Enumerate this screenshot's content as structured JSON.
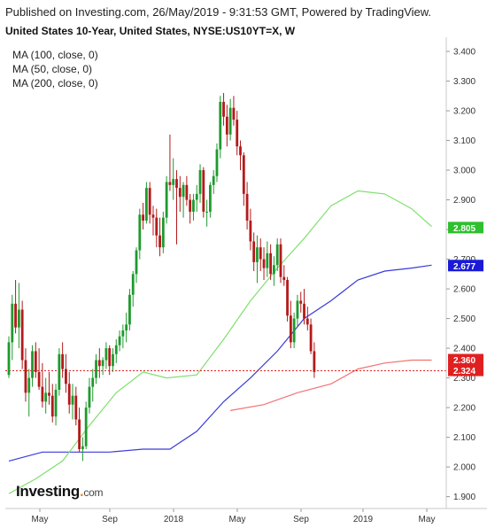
{
  "header": {
    "published": "Published on Investing.com, 26/May/2019 - 9:31:53 GMT, Powered by TradingView.",
    "title": "United States 10-Year, United States, NYSE:US10YT=X, W"
  },
  "indicators": [
    {
      "label": "MA (100, close, 0)",
      "color": "#3a3adb"
    },
    {
      "label": "MA (50, close, 0)",
      "color": "#7ee06c"
    },
    {
      "label": "MA (200, close, 0)",
      "color": "#f07373"
    }
  ],
  "logo": {
    "text": "Investing",
    "suffix": "com"
  },
  "chart_data": {
    "type": "candlestick",
    "interval": "weekly",
    "y_ticks": [
      "3.400",
      "3.300",
      "3.200",
      "3.100",
      "3.000",
      "2.900",
      "2.800",
      "2.700",
      "2.600",
      "2.500",
      "2.400",
      "2.300",
      "2.200",
      "2.100",
      "2.000",
      "1.900"
    ],
    "ylim": [
      1.86,
      3.43
    ],
    "x_ticks": [
      "May",
      "Sep",
      "2018",
      "May",
      "Sep",
      "2019",
      "May"
    ],
    "tags": [
      {
        "text": "2.805",
        "value": 2.805,
        "color": "#2fbf2f"
      },
      {
        "text": "2.677",
        "value": 2.677,
        "color": "#1a1ad8"
      },
      {
        "text": "2.360",
        "value": 2.36,
        "color": "#e02020"
      },
      {
        "text": "2.324",
        "value": 2.324,
        "color": "#e02020"
      }
    ],
    "last_close": 2.324,
    "candles": [
      [
        2.31,
        2.44,
        2.3,
        2.42
      ],
      [
        2.42,
        2.58,
        2.36,
        2.55
      ],
      [
        2.55,
        2.63,
        2.45,
        2.47
      ],
      [
        2.47,
        2.62,
        2.4,
        2.53
      ],
      [
        2.53,
        2.56,
        2.33,
        2.36
      ],
      [
        2.36,
        2.4,
        2.22,
        2.25
      ],
      [
        2.25,
        2.33,
        2.17,
        2.3
      ],
      [
        2.3,
        2.41,
        2.27,
        2.39
      ],
      [
        2.39,
        2.42,
        2.3,
        2.32
      ],
      [
        2.32,
        2.4,
        2.26,
        2.27
      ],
      [
        2.27,
        2.35,
        2.2,
        2.22
      ],
      [
        2.22,
        2.3,
        2.18,
        2.25
      ],
      [
        2.25,
        2.32,
        2.21,
        2.24
      ],
      [
        2.24,
        2.28,
        2.15,
        2.17
      ],
      [
        2.17,
        2.28,
        2.14,
        2.26
      ],
      [
        2.26,
        2.4,
        2.24,
        2.38
      ],
      [
        2.38,
        2.42,
        2.3,
        2.33
      ],
      [
        2.33,
        2.38,
        2.25,
        2.28
      ],
      [
        2.28,
        2.32,
        2.18,
        2.21
      ],
      [
        2.21,
        2.28,
        2.16,
        2.24
      ],
      [
        2.24,
        2.27,
        2.14,
        2.16
      ],
      [
        2.16,
        2.2,
        2.05,
        2.06
      ],
      [
        2.06,
        2.1,
        2.02,
        2.07
      ],
      [
        2.07,
        2.22,
        2.06,
        2.2
      ],
      [
        2.2,
        2.3,
        2.18,
        2.27
      ],
      [
        2.27,
        2.33,
        2.22,
        2.3
      ],
      [
        2.3,
        2.38,
        2.28,
        2.36
      ],
      [
        2.36,
        2.4,
        2.3,
        2.34
      ],
      [
        2.34,
        2.37,
        2.31,
        2.36
      ],
      [
        2.36,
        2.42,
        2.33,
        2.4
      ],
      [
        2.4,
        2.41,
        2.31,
        2.34
      ],
      [
        2.34,
        2.4,
        2.32,
        2.38
      ],
      [
        2.38,
        2.43,
        2.35,
        2.41
      ],
      [
        2.41,
        2.46,
        2.39,
        2.44
      ],
      [
        2.44,
        2.48,
        2.4,
        2.46
      ],
      [
        2.46,
        2.52,
        2.42,
        2.48
      ],
      [
        2.48,
        2.6,
        2.46,
        2.58
      ],
      [
        2.58,
        2.66,
        2.54,
        2.65
      ],
      [
        2.65,
        2.74,
        2.62,
        2.73
      ],
      [
        2.73,
        2.87,
        2.7,
        2.85
      ],
      [
        2.85,
        2.89,
        2.8,
        2.83
      ],
      [
        2.83,
        2.96,
        2.82,
        2.94
      ],
      [
        2.94,
        2.96,
        2.82,
        2.85
      ],
      [
        2.85,
        2.88,
        2.78,
        2.84
      ],
      [
        2.84,
        2.87,
        2.74,
        2.78
      ],
      [
        2.78,
        2.84,
        2.71,
        2.74
      ],
      [
        2.74,
        2.86,
        2.72,
        2.84
      ],
      [
        2.84,
        2.98,
        2.82,
        2.96
      ],
      [
        2.96,
        3.12,
        2.93,
        2.95
      ],
      [
        2.95,
        3.04,
        2.9,
        2.97
      ],
      [
        2.97,
        3.0,
        2.75,
        2.94
      ],
      [
        2.94,
        2.98,
        2.86,
        2.91
      ],
      [
        2.91,
        2.96,
        2.84,
        2.95
      ],
      [
        2.95,
        2.98,
        2.88,
        2.9
      ],
      [
        2.9,
        2.92,
        2.82,
        2.86
      ],
      [
        2.86,
        2.92,
        2.83,
        2.9
      ],
      [
        2.9,
        2.95,
        2.86,
        2.92
      ],
      [
        2.92,
        3.02,
        2.89,
        3.0
      ],
      [
        3.0,
        3.01,
        2.84,
        2.86
      ],
      [
        2.86,
        2.9,
        2.81,
        2.86
      ],
      [
        2.86,
        2.96,
        2.84,
        2.95
      ],
      [
        2.95,
        3.0,
        2.92,
        2.98
      ],
      [
        2.98,
        3.09,
        2.96,
        3.07
      ],
      [
        3.07,
        3.25,
        3.04,
        3.23
      ],
      [
        3.23,
        3.26,
        3.15,
        3.18
      ],
      [
        3.18,
        3.22,
        3.08,
        3.12
      ],
      [
        3.12,
        3.24,
        3.1,
        3.21
      ],
      [
        3.21,
        3.25,
        3.15,
        3.17
      ],
      [
        3.17,
        3.2,
        3.05,
        3.08
      ],
      [
        3.08,
        3.1,
        3.0,
        3.05
      ],
      [
        3.05,
        3.06,
        2.88,
        2.92
      ],
      [
        2.92,
        2.96,
        2.8,
        2.83
      ],
      [
        2.83,
        2.87,
        2.73,
        2.76
      ],
      [
        2.76,
        2.79,
        2.66,
        2.69
      ],
      [
        2.69,
        2.78,
        2.62,
        2.74
      ],
      [
        2.74,
        2.77,
        2.66,
        2.7
      ],
      [
        2.7,
        2.74,
        2.63,
        2.67
      ],
      [
        2.67,
        2.76,
        2.64,
        2.72
      ],
      [
        2.72,
        2.75,
        2.63,
        2.65
      ],
      [
        2.65,
        2.71,
        2.61,
        2.68
      ],
      [
        2.68,
        2.77,
        2.66,
        2.75
      ],
      [
        2.75,
        2.77,
        2.62,
        2.64
      ],
      [
        2.64,
        2.68,
        2.61,
        2.63
      ],
      [
        2.63,
        2.64,
        2.49,
        2.51
      ],
      [
        2.51,
        2.56,
        2.4,
        2.42
      ],
      [
        2.42,
        2.52,
        2.4,
        2.5
      ],
      [
        2.5,
        2.58,
        2.47,
        2.56
      ],
      [
        2.56,
        2.59,
        2.52,
        2.55
      ],
      [
        2.55,
        2.6,
        2.48,
        2.5
      ],
      [
        2.5,
        2.54,
        2.46,
        2.48
      ],
      [
        2.48,
        2.5,
        2.38,
        2.39
      ],
      [
        2.39,
        2.42,
        2.3,
        2.32
      ]
    ],
    "ma_series": {
      "MA (50, close, 0)": [
        [
          0,
          1.91
        ],
        [
          8,
          1.96
        ],
        [
          16,
          2.02
        ],
        [
          24,
          2.14
        ],
        [
          32,
          2.25
        ],
        [
          40,
          2.32
        ],
        [
          47,
          2.3
        ],
        [
          56,
          2.31
        ],
        [
          64,
          2.43
        ],
        [
          72,
          2.56
        ],
        [
          80,
          2.67
        ],
        [
          88,
          2.77
        ],
        [
          96,
          2.88
        ],
        [
          104,
          2.93
        ],
        [
          112,
          2.92
        ],
        [
          120,
          2.87
        ],
        [
          126,
          2.81
        ]
      ],
      "MA (100, close, 0)": [
        [
          0,
          2.02
        ],
        [
          10,
          2.05
        ],
        [
          20,
          2.05
        ],
        [
          30,
          2.05
        ],
        [
          40,
          2.06
        ],
        [
          48,
          2.06
        ],
        [
          56,
          2.12
        ],
        [
          64,
          2.22
        ],
        [
          72,
          2.3
        ],
        [
          80,
          2.39
        ],
        [
          88,
          2.5
        ],
        [
          96,
          2.56
        ],
        [
          104,
          2.63
        ],
        [
          112,
          2.66
        ],
        [
          120,
          2.67
        ],
        [
          126,
          2.68
        ]
      ],
      "MA (200, close, 0)": [
        [
          66,
          2.19
        ],
        [
          76,
          2.21
        ],
        [
          86,
          2.25
        ],
        [
          96,
          2.28
        ],
        [
          104,
          2.33
        ],
        [
          112,
          2.35
        ],
        [
          120,
          2.36
        ],
        [
          126,
          2.36
        ]
      ]
    }
  }
}
